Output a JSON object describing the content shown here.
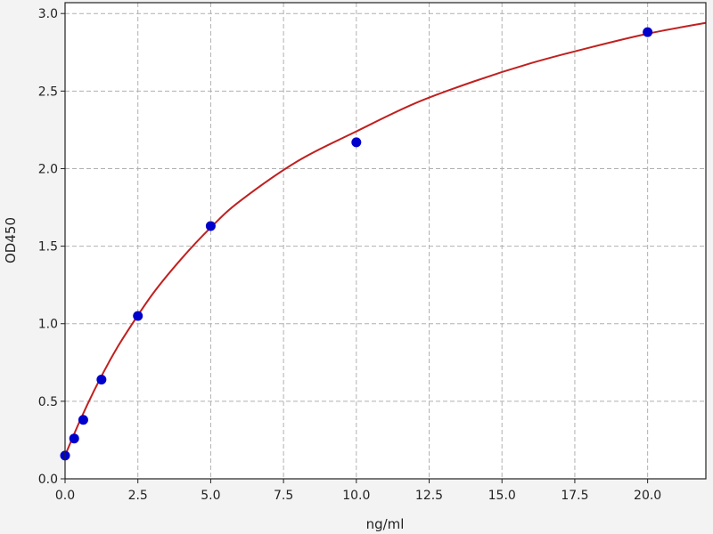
{
  "chart_data": {
    "type": "scatter",
    "title": "",
    "xlabel": "ng/ml",
    "ylabel": "OD450",
    "xlim": [
      0,
      22
    ],
    "ylim": [
      0,
      3.07
    ],
    "grid": true,
    "x_ticks": [
      "0.0",
      "2.5",
      "5.0",
      "7.5",
      "10.0",
      "12.5",
      "15.0",
      "17.5",
      "20.0"
    ],
    "y_ticks": [
      "0.0",
      "0.5",
      "1.0",
      "1.5",
      "2.0",
      "2.5",
      "3.0"
    ],
    "points": {
      "x": [
        0,
        0.3125,
        0.625,
        1.25,
        2.5,
        5,
        10,
        20
      ],
      "y": [
        0.15,
        0.26,
        0.38,
        0.64,
        1.05,
        1.63,
        2.17,
        2.88
      ],
      "color": "#0000cc"
    },
    "fit_curve": {
      "x": [
        0,
        0.5,
        1,
        1.5,
        2,
        3,
        4,
        5,
        6,
        8,
        10,
        12,
        14,
        16,
        18,
        20,
        22
      ],
      "y": [
        0.15,
        0.37,
        0.57,
        0.75,
        0.91,
        1.19,
        1.42,
        1.62,
        1.79,
        2.05,
        2.24,
        2.42,
        2.56,
        2.68,
        2.78,
        2.87,
        2.94
      ],
      "color": "#c0201f"
    }
  }
}
